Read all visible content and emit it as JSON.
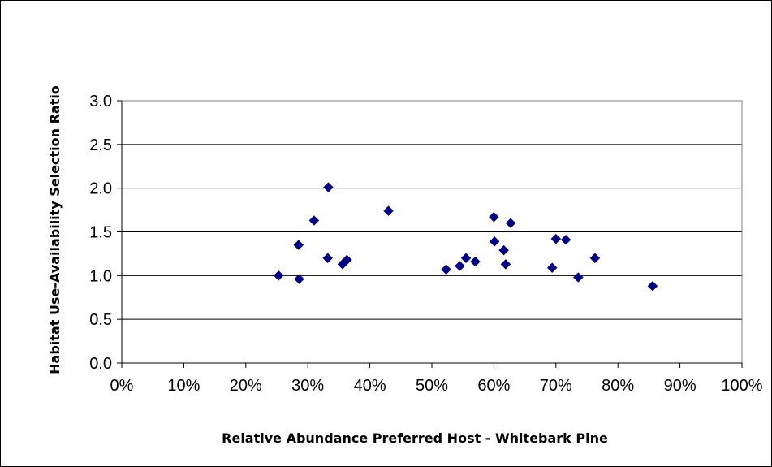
{
  "chart_data": {
    "type": "scatter",
    "title": "",
    "xlabel": "Relative Abundance Preferred Host - Whitebark Pine",
    "ylabel": "Habitat Use-Availability Selection Ratio",
    "xlim": [
      0,
      100
    ],
    "ylim": [
      0,
      3
    ],
    "x_ticks": [
      "0%",
      "10%",
      "20%",
      "30%",
      "40%",
      "50%",
      "60%",
      "70%",
      "80%",
      "90%",
      "100%"
    ],
    "y_ticks": [
      "0.0",
      "0.5",
      "1.0",
      "1.5",
      "2.0",
      "2.5",
      "3.0"
    ],
    "grid": "horizontal",
    "legend": "none",
    "marker_color": "#000080",
    "points": [
      {
        "x": 25.3,
        "y": 1.0
      },
      {
        "x": 28.5,
        "y": 1.35
      },
      {
        "x": 28.6,
        "y": 0.96
      },
      {
        "x": 31.0,
        "y": 1.63
      },
      {
        "x": 33.2,
        "y": 1.2
      },
      {
        "x": 33.3,
        "y": 2.01
      },
      {
        "x": 35.6,
        "y": 1.13
      },
      {
        "x": 36.3,
        "y": 1.18
      },
      {
        "x": 43.0,
        "y": 1.74
      },
      {
        "x": 52.3,
        "y": 1.07
      },
      {
        "x": 54.5,
        "y": 1.11
      },
      {
        "x": 55.5,
        "y": 1.2
      },
      {
        "x": 57.0,
        "y": 1.16
      },
      {
        "x": 60.0,
        "y": 1.67
      },
      {
        "x": 60.1,
        "y": 1.39
      },
      {
        "x": 61.6,
        "y": 1.29
      },
      {
        "x": 61.9,
        "y": 1.13
      },
      {
        "x": 62.7,
        "y": 1.6
      },
      {
        "x": 69.4,
        "y": 1.09
      },
      {
        "x": 70.0,
        "y": 1.42
      },
      {
        "x": 71.6,
        "y": 1.41
      },
      {
        "x": 73.6,
        "y": 0.98
      },
      {
        "x": 76.3,
        "y": 1.2
      },
      {
        "x": 85.6,
        "y": 0.88
      }
    ]
  }
}
